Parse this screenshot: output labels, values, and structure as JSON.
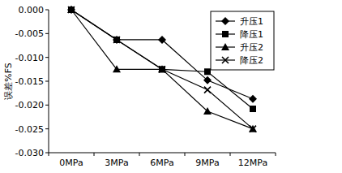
{
  "chart_data": {
    "type": "line",
    "y_label": "误差%FS",
    "categories": [
      "0MPa",
      "3MPa",
      "6MPa",
      "9MPa",
      "12MPa"
    ],
    "series": [
      {
        "name": "升压1",
        "color": "#000000",
        "marker": "diamond",
        "line_style": "solid",
        "values": [
          0,
          -0.0063,
          -0.0063,
          -0.0148,
          -0.0187
        ]
      },
      {
        "name": "降压1",
        "color": "#000000",
        "marker": "square",
        "line_style": "solid",
        "values": [
          0,
          -0.0063,
          -0.0125,
          -0.013,
          -0.0208
        ]
      },
      {
        "name": "升压2",
        "color": "#000000",
        "marker": "triangle",
        "line_style": "solid",
        "values": [
          0,
          -0.0125,
          -0.0125,
          -0.0213,
          -0.025
        ]
      },
      {
        "name": "降压2",
        "color": "#000000",
        "marker": "x",
        "line_style": "solid",
        "values": [
          0,
          -0.0063,
          -0.0125,
          -0.0168,
          -0.025
        ]
      }
    ],
    "ylim": [
      -0.03,
      0
    ],
    "yticks": [
      {
        "value": 0,
        "label": "0.000"
      },
      {
        "value": -0.005,
        "label": "-0.005"
      },
      {
        "value": -0.01,
        "label": "-0.010"
      },
      {
        "value": -0.015,
        "label": "-0.015"
      },
      {
        "value": -0.02,
        "label": "-0.020"
      },
      {
        "value": -0.025,
        "label": "-0.025"
      },
      {
        "value": -0.03,
        "label": "-0.030"
      }
    ],
    "grid": false,
    "legend": "top-right"
  }
}
